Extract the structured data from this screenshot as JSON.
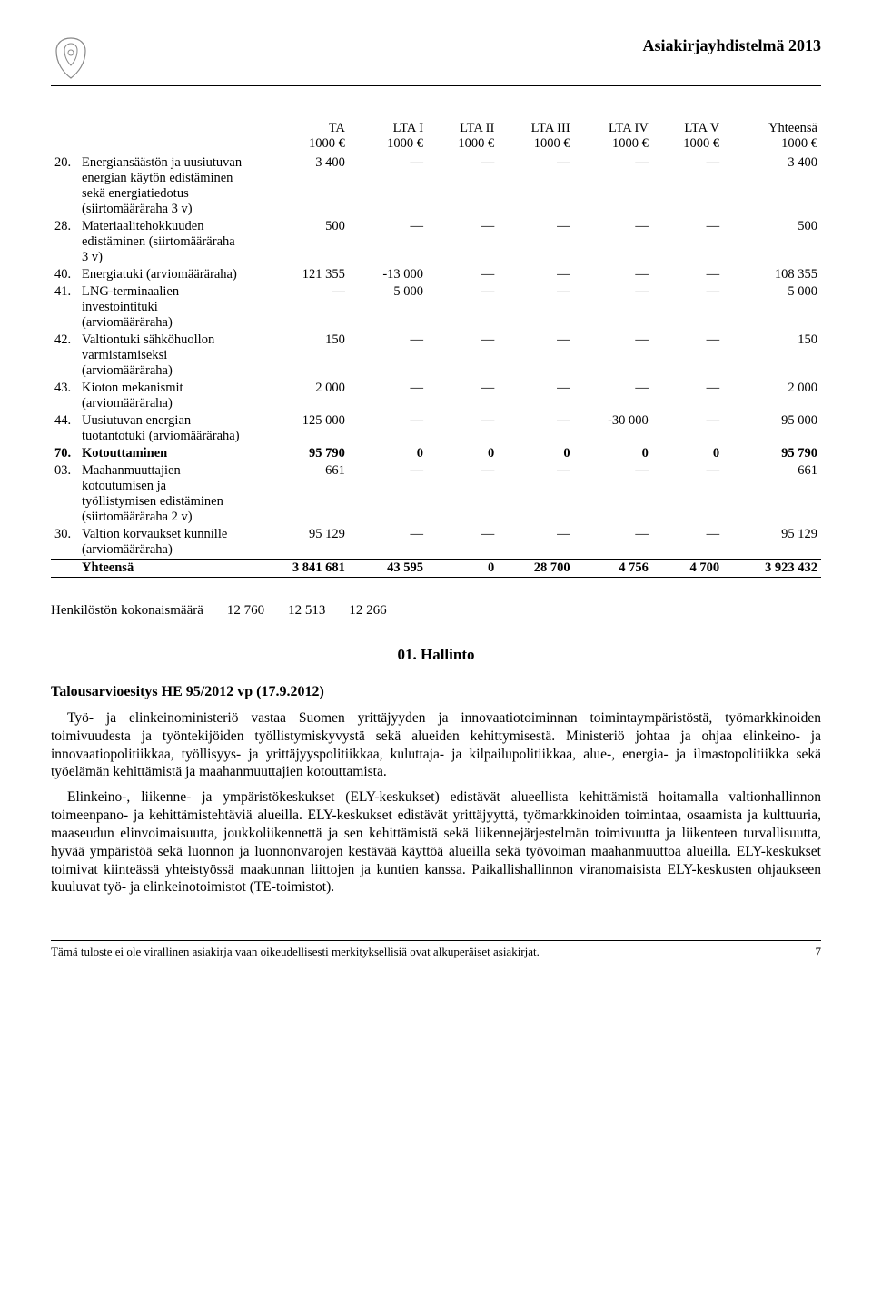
{
  "header": {
    "doc_title": "Asiakirjayhdistelmä 2013"
  },
  "table": {
    "columns": [
      "",
      "",
      "TA\n1000 €",
      "LTA I\n1000 €",
      "LTA II\n1000 €",
      "LTA III\n1000 €",
      "LTA IV\n1000 €",
      "LTA V\n1000 €",
      "Yhteensä\n1000 €"
    ],
    "rows": [
      {
        "num": "20.",
        "label": "Energiansäästön ja uusiutuvan energian käytön edistäminen sekä energiatiedotus (siirtomääräraha 3 v)",
        "c": [
          "3 400",
          "—",
          "—",
          "—",
          "—",
          "—",
          "3 400"
        ]
      },
      {
        "num": "28.",
        "label": "Materiaalitehokkuuden edistäminen (siirtomääräraha 3 v)",
        "c": [
          "500",
          "—",
          "—",
          "—",
          "—",
          "—",
          "500"
        ]
      },
      {
        "num": "40.",
        "label": "Energiatuki (arviomääräraha)",
        "c": [
          "121 355",
          "-13 000",
          "—",
          "—",
          "—",
          "—",
          "108 355"
        ]
      },
      {
        "num": "41.",
        "label": "LNG-terminaalien investointituki (arviomääräraha)",
        "c": [
          "—",
          "5 000",
          "—",
          "—",
          "—",
          "—",
          "5 000"
        ]
      },
      {
        "num": "42.",
        "label": "Valtiontuki sähköhuollon varmistamiseksi (arviomääräraha)",
        "c": [
          "150",
          "—",
          "—",
          "—",
          "—",
          "—",
          "150"
        ]
      },
      {
        "num": "43.",
        "label": "Kioton mekanismit (arviomääräraha)",
        "c": [
          "2 000",
          "—",
          "—",
          "—",
          "—",
          "—",
          "2 000"
        ]
      },
      {
        "num": "44.",
        "label": "Uusiutuvan energian tuotantotuki (arviomääräraha)",
        "c": [
          "125 000",
          "—",
          "—",
          "—",
          "-30 000",
          "—",
          "95 000"
        ]
      },
      {
        "num": "70.",
        "label": "Kotouttaminen",
        "bold": true,
        "c": [
          "95 790",
          "0",
          "0",
          "0",
          "0",
          "0",
          "95 790"
        ]
      },
      {
        "num": "03.",
        "label": "Maahanmuuttajien kotoutumisen ja työllistymisen edistäminen (siirtomääräraha 2 v)",
        "c": [
          "661",
          "—",
          "—",
          "—",
          "—",
          "—",
          "661"
        ]
      },
      {
        "num": "30.",
        "label": "Valtion korvaukset kunnille (arviomääräraha)",
        "c": [
          "95 129",
          "—",
          "—",
          "—",
          "—",
          "—",
          "95 129"
        ]
      }
    ],
    "sum": {
      "label": "Yhteensä",
      "c": [
        "3 841 681",
        "43 595",
        "0",
        "28 700",
        "4 756",
        "4 700",
        "3 923 432"
      ]
    }
  },
  "personnel": {
    "label": "Henkilöstön kokonaismäärä",
    "v1": "12 760",
    "v2": "12 513",
    "v3": "12 266"
  },
  "section": {
    "title": "01. Hallinto",
    "subhead": "Talousarvioesitys HE 95/2012 vp (17.9.2012)",
    "p1": "Työ- ja elinkeinoministeriö vastaa Suomen yrittäjyyden ja innovaatiotoiminnan toimintaympäristöstä, työmarkkinoiden toimivuudesta ja työntekijöiden työllistymiskyvystä sekä alueiden kehittymisestä. Ministeriö johtaa ja ohjaa elinkeino- ja innovaatiopolitiikkaa, työllisyys- ja yrittäjyyspolitiikkaa, kuluttaja- ja kilpailupolitiikkaa, alue-, energia- ja ilmastopolitiikka sekä työelämän kehittämistä ja maahanmuuttajien kotouttamista.",
    "p2": "Elinkeino-, liikenne- ja ympäristökeskukset (ELY-keskukset) edistävät alueellista kehittämistä hoitamalla valtionhallinnon toimeenpano- ja kehittämistehtäviä alueilla. ELY-keskukset edistävät yrittäjyyttä, työmarkkinoiden toimintaa, osaamista ja kulttuuria, maaseudun elinvoimaisuutta, joukkoliikennettä ja sen kehittämistä sekä liikennejärjestelmän toimivuutta ja liikenteen turvallisuutta, hyvää ympäristöä sekä luonnon ja luonnonvarojen kestävää käyttöä alueilla sekä työvoiman maahanmuuttoa alueilla. ELY-keskukset toimivat kiinteässä yhteistyössä maakunnan liittojen ja kuntien kanssa. Paikallishallinnon viranomaisista ELY-keskusten ohjaukseen kuuluvat työ- ja elinkeinotoimistot (TE-toimistot)."
  },
  "footer": {
    "note": "Tämä tuloste ei ole virallinen asiakirja vaan oikeudellisesti merkityksellisiä ovat alkuperäiset asiakirjat.",
    "page": "7"
  }
}
